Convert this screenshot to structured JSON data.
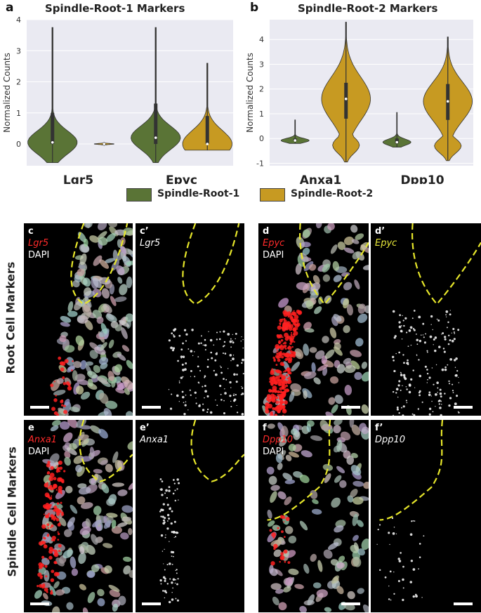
{
  "panels": {
    "a": {
      "letter": "a",
      "title": "Spindle-Root-1 Markers"
    },
    "b": {
      "letter": "b",
      "title": "Spindle-Root-2 Markers"
    }
  },
  "legend": {
    "items": [
      {
        "label": "Spindle-Root-1",
        "color": "#5a7436"
      },
      {
        "label": "Spindle-Root-2",
        "color": "#c79a22"
      }
    ]
  },
  "chart_data": [
    {
      "type": "violin",
      "title": "Spindle-Root-1 Markers",
      "ylabel": "Normalized Counts",
      "ylim": [
        -0.7,
        4
      ],
      "yticks": [
        0,
        1,
        2,
        3,
        4
      ],
      "categories": [
        "Lgr5",
        "Epyc"
      ],
      "grid": true,
      "series": [
        {
          "name": "Spindle-Root-1",
          "color": "#5a7436",
          "values": [
            {
              "category": "Lgr5",
              "min": -0.6,
              "q1": 0.0,
              "median": 0.05,
              "q3": 1.0,
              "max": 3.75
            },
            {
              "category": "Epyc",
              "min": -0.6,
              "q1": 0.0,
              "median": 0.2,
              "q3": 1.3,
              "max": 3.75
            }
          ]
        },
        {
          "name": "Spindle-Root-2",
          "color": "#c79a22",
          "values": [
            {
              "category": "Lgr5",
              "min": -0.05,
              "q1": 0.0,
              "median": 0.0,
              "q3": 0.0,
              "max": 0.05
            },
            {
              "category": "Epyc",
              "min": -0.2,
              "q1": 0.0,
              "median": 0.0,
              "q3": 0.9,
              "max": 2.6
            }
          ]
        }
      ]
    },
    {
      "type": "violin",
      "title": "Spindle-Root-2 Markers",
      "ylabel": "Normalized Counts",
      "ylim": [
        -1.1,
        4.8
      ],
      "yticks": [
        -1,
        0,
        1,
        2,
        3,
        4
      ],
      "categories": [
        "Anxa1",
        "Dpp10"
      ],
      "grid": true,
      "series": [
        {
          "name": "Spindle-Root-1",
          "color": "#5a7436",
          "values": [
            {
              "category": "Anxa1",
              "min": -0.2,
              "q1": -0.1,
              "median": -0.08,
              "q3": 0.0,
              "max": 0.75
            },
            {
              "category": "Dpp10",
              "min": -0.35,
              "q1": -0.2,
              "median": -0.15,
              "q3": 0.0,
              "max": 1.05
            }
          ]
        },
        {
          "name": "Spindle-Root-2",
          "color": "#c79a22",
          "values": [
            {
              "category": "Anxa1",
              "min": -0.95,
              "q1": 0.8,
              "median": 1.6,
              "q3": 2.25,
              "max": 4.7
            },
            {
              "category": "Dpp10",
              "min": -0.9,
              "q1": 0.75,
              "median": 1.5,
              "q3": 2.2,
              "max": 4.1
            }
          ]
        }
      ]
    }
  ],
  "images": {
    "row_labels": [
      "Root Cell Markers",
      "Spindle Cell Markers"
    ],
    "panels": [
      {
        "letter": "c",
        "marker": "Lgr5",
        "marker_color": "#ff2a2a",
        "stain": "DAPI"
      },
      {
        "letter": "c’",
        "marker": "Lgr5",
        "marker_color": "#ffffff"
      },
      {
        "letter": "d",
        "marker": "Epyc",
        "marker_color": "#ff2a2a",
        "stain": "DAPI"
      },
      {
        "letter": "d’",
        "marker": "Epyc",
        "marker_color": "#e8e83a"
      },
      {
        "letter": "e",
        "marker": "Anxa1",
        "marker_color": "#ff2a2a",
        "stain": "DAPI"
      },
      {
        "letter": "e’",
        "marker": "Anxa1",
        "marker_color": "#ffffff"
      },
      {
        "letter": "f",
        "marker": "Dpp10",
        "marker_color": "#ff2a2a",
        "stain": "DAPI"
      },
      {
        "letter": "f’",
        "marker": "Dpp10",
        "marker_color": "#ffffff"
      }
    ]
  }
}
